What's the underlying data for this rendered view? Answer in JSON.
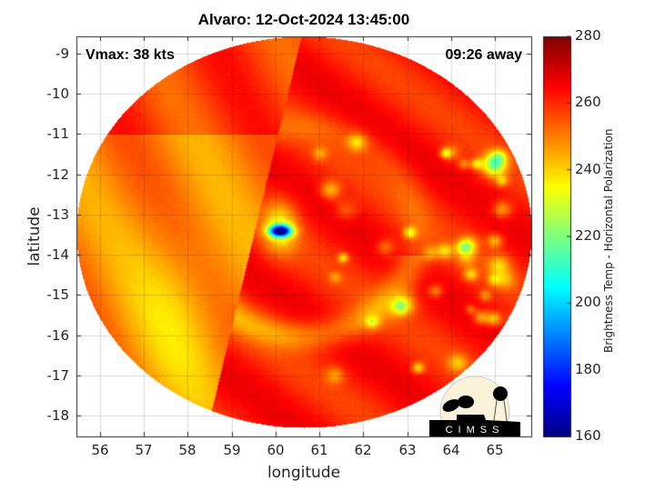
{
  "chart_data": {
    "type": "heatmap",
    "title": "Alvaro: 12-Oct-2024 13:45:00",
    "annotations": {
      "left": "Vmax: 38 kts",
      "right": "09:26 away"
    },
    "xlabel": "longitude",
    "ylabel": "latitude",
    "xlim": [
      55.46,
      65.83
    ],
    "ylim": [
      -18.52,
      -8.57
    ],
    "xticks": [
      56,
      57,
      58,
      59,
      60,
      61,
      62,
      63,
      64,
      65
    ],
    "yticks": [
      -9,
      -10,
      -11,
      -12,
      -13,
      -14,
      -15,
      -16,
      -17,
      -18
    ],
    "grid": true,
    "colorbar": {
      "label": "Brightness Temp - Horizontal Polarization",
      "colormap": "jet",
      "range": [
        160,
        280
      ],
      "ticks": [
        280,
        260,
        240,
        220,
        200,
        180,
        160
      ]
    },
    "features": {
      "coldest_core": {
        "lon": 60.1,
        "lat": -13.4,
        "value": 175
      },
      "swath_seam_lon": 59.5
    }
  },
  "logo": {
    "text": "CIMSS"
  }
}
